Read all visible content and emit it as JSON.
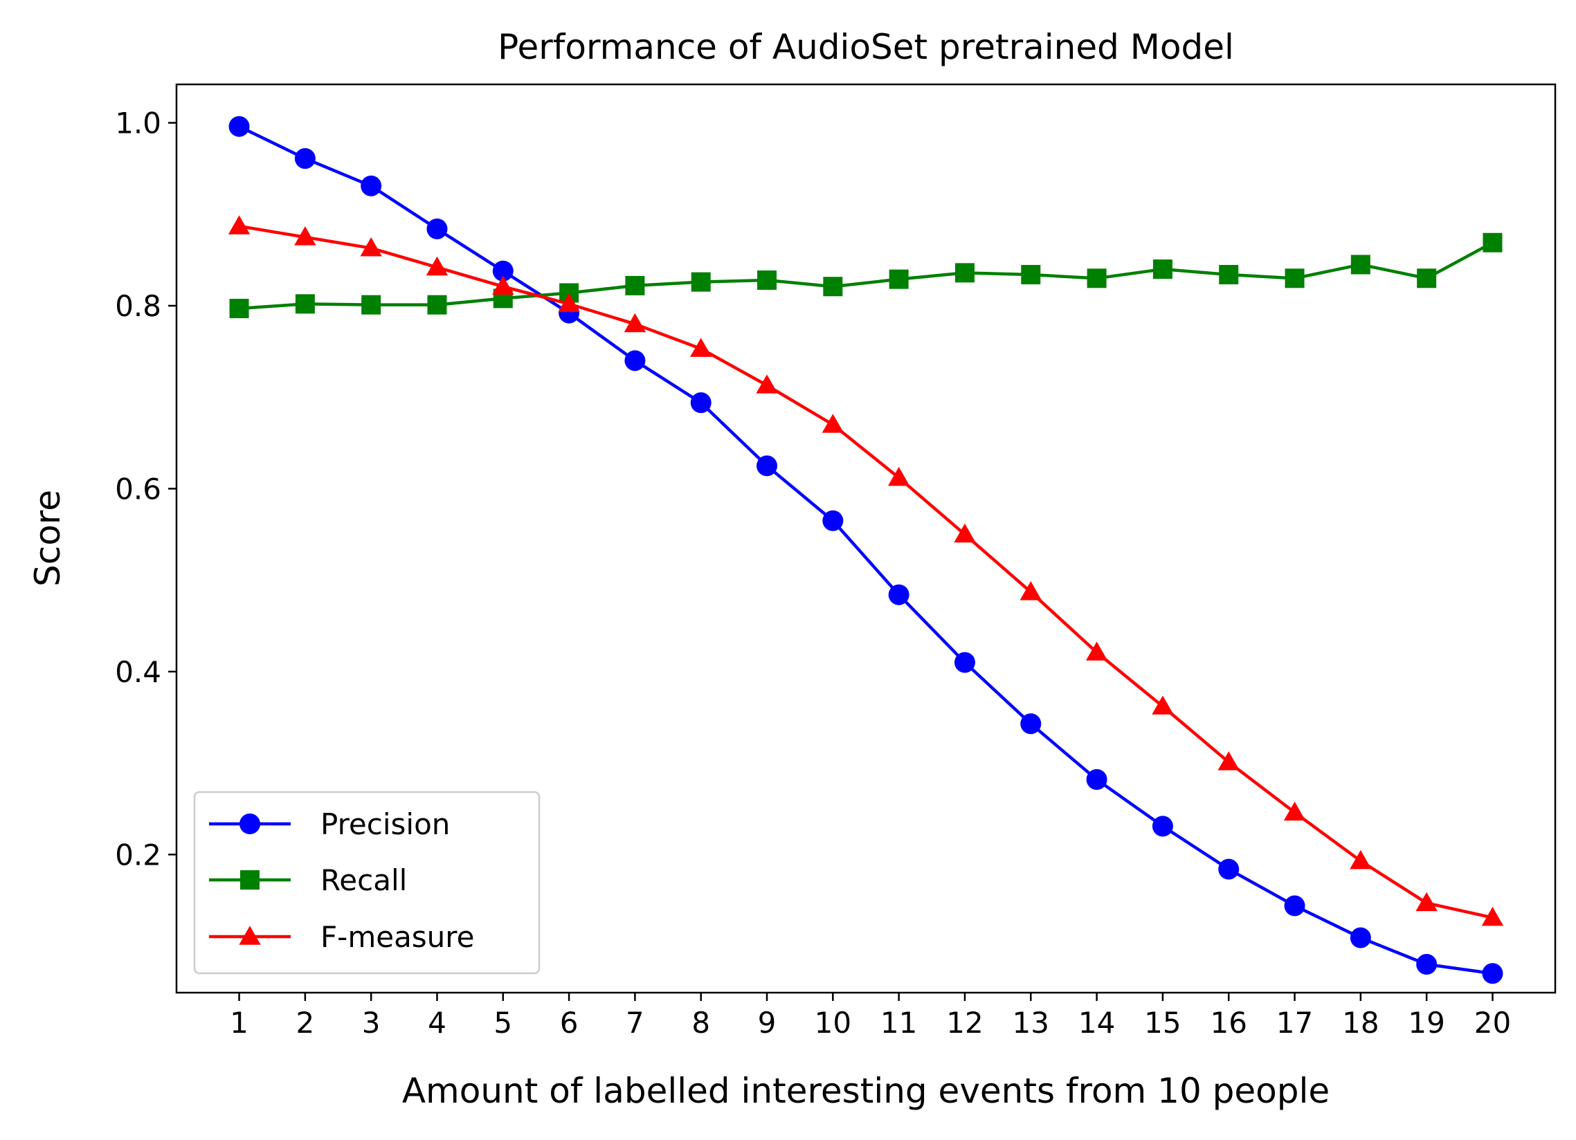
{
  "chart_data": {
    "type": "line",
    "title": "Performance of AudioSet pretrained Model",
    "xlabel": "Amount of labelled interesting events from 10 people",
    "ylabel": "Score",
    "x": [
      1,
      2,
      3,
      4,
      5,
      6,
      7,
      8,
      9,
      10,
      11,
      12,
      13,
      14,
      15,
      16,
      17,
      18,
      19,
      20
    ],
    "xlim": [
      0.05,
      20.95
    ],
    "ylim": [
      0.049,
      1.042
    ],
    "yticks": [
      0.2,
      0.4,
      0.6,
      0.8,
      1.0
    ],
    "ytick_labels": [
      "0.2",
      "0.4",
      "0.6",
      "0.8",
      "1.0"
    ],
    "xtick_labels": [
      "1",
      "2",
      "3",
      "4",
      "5",
      "6",
      "7",
      "8",
      "9",
      "10",
      "11",
      "12",
      "13",
      "14",
      "15",
      "16",
      "17",
      "18",
      "19",
      "20"
    ],
    "grid": false,
    "legend_position": "lower-left",
    "series": [
      {
        "name": "Precision",
        "color": "#0000ff",
        "marker": "circle",
        "values": [
          0.996,
          0.961,
          0.931,
          0.884,
          0.838,
          0.792,
          0.74,
          0.694,
          0.625,
          0.565,
          0.484,
          0.41,
          0.343,
          0.282,
          0.231,
          0.184,
          0.144,
          0.109,
          0.08,
          0.07
        ]
      },
      {
        "name": "Recall",
        "color": "#008000",
        "marker": "square",
        "values": [
          0.797,
          0.802,
          0.801,
          0.801,
          0.808,
          0.814,
          0.822,
          0.826,
          0.828,
          0.821,
          0.829,
          0.836,
          0.834,
          0.83,
          0.84,
          0.834,
          0.83,
          0.845,
          0.83,
          0.869
        ]
      },
      {
        "name": "F-measure",
        "color": "#ff0000",
        "marker": "triangle",
        "values": [
          0.887,
          0.875,
          0.863,
          0.842,
          0.821,
          0.802,
          0.78,
          0.753,
          0.713,
          0.67,
          0.612,
          0.55,
          0.487,
          0.421,
          0.362,
          0.301,
          0.246,
          0.193,
          0.147,
          0.131
        ]
      }
    ]
  }
}
